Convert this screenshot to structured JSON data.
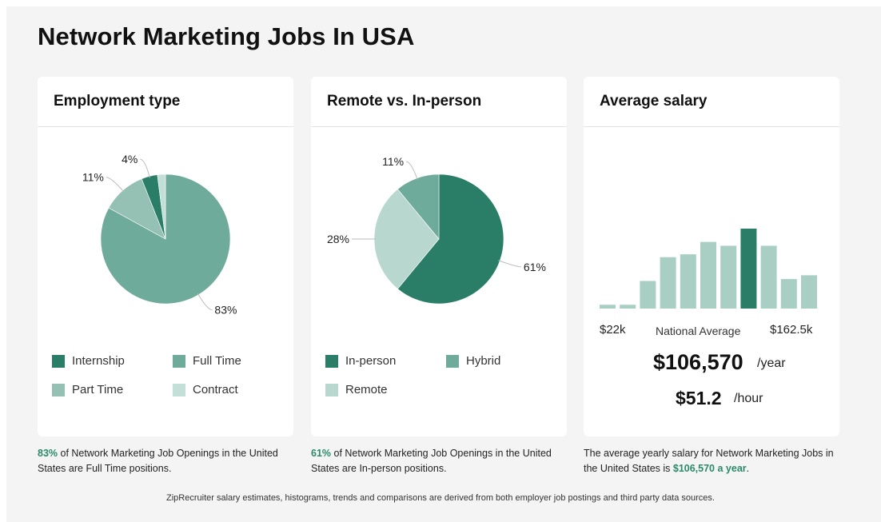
{
  "page": {
    "title": "Network Marketing Jobs In USA"
  },
  "colors": {
    "dark": "#2a7d67",
    "mid": "#6fab9a",
    "light": "#a9cfc4",
    "pale": "#c3dfd7",
    "accent": "#2a8a6a"
  },
  "cards": {
    "employment": {
      "title": "Employment type",
      "legend": [
        "Internship",
        "Full Time",
        "Part Time",
        "Contract"
      ],
      "caption_highlight": "83%",
      "caption_rest": " of Network Marketing Job Openings in the United States are Full Time positions."
    },
    "remote": {
      "title": "Remote vs. In-person",
      "legend": [
        "In-person",
        "Hybrid",
        "Remote"
      ],
      "caption_highlight": "61%",
      "caption_rest": " of Network Marketing Job Openings in the United States are In-person positions."
    },
    "salary": {
      "title": "Average salary",
      "min_label": "$22k",
      "mid_label": "National Average",
      "max_label": "$162.5k",
      "yearly": "$106,570",
      "yearly_unit": "/year",
      "hourly": "$51.2",
      "hourly_unit": "/hour",
      "caption_prefix": "The average yearly salary for Network Marketing Jobs in the United States is ",
      "caption_highlight": "$106,570 a year",
      "caption_suffix": "."
    }
  },
  "footnote": "ZipRecruiter salary estimates, histograms, trends and comparisons are derived from both employer job postings and third party data sources.",
  "chart_data": [
    {
      "type": "pie",
      "title": "Employment type",
      "categories": [
        "Full Time",
        "Part Time",
        "Internship",
        "Contract"
      ],
      "values": [
        83,
        11,
        4,
        2
      ],
      "labels": [
        "83%",
        "11%",
        "4%",
        ""
      ],
      "colors": [
        "#6fab9a",
        "#94c1b4",
        "#2a7d67",
        "#c3dfd7"
      ]
    },
    {
      "type": "pie",
      "title": "Remote vs. In-person",
      "categories": [
        "In-person",
        "Remote",
        "Hybrid"
      ],
      "values": [
        61,
        28,
        11
      ],
      "labels": [
        "61%",
        "28%",
        "11%"
      ],
      "colors": [
        "#2a7d67",
        "#b8d8cf",
        "#6fab9a"
      ]
    },
    {
      "type": "bar",
      "title": "Average salary",
      "x_range": [
        "$22k",
        "$162.5k"
      ],
      "values": [
        4,
        4,
        29,
        54,
        57,
        70,
        66,
        84,
        66,
        31,
        35
      ],
      "highlight_index": 7
    }
  ]
}
